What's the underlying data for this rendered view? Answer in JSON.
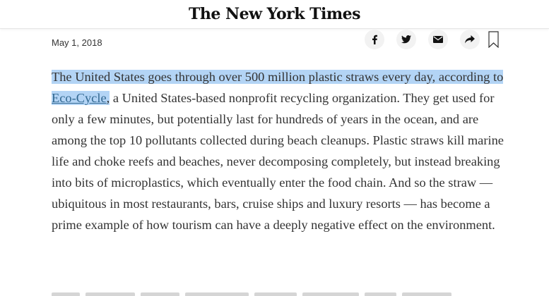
{
  "masthead": {
    "logo_text": "The New York Times"
  },
  "article": {
    "date": "May 1, 2018",
    "paragraph": {
      "highlighted_part1": "The United States goes through over 500 million plastic straws every day, according to ",
      "link_text": "Eco-Cycle",
      "highlighted_comma": ",",
      "rest": " a United States-based nonprofit recycling organization. They get used for only a few minutes, but potentially last for hundreds of years in the ocean, and are among the top 10 pollutants collected during beach cleanups. Plastic straws kill marine life and choke reefs and beaches, never decomposing completely, but instead breaking into bits of microplastics, which eventually enter the food chain. And so the straw — ubiquitous in most restaurants, bars, cruise ships and luxury resorts — has become a prime example of how tourism can have a deeply negative effect on the environment."
    }
  },
  "share_tools": [
    {
      "icon": "facebook-icon"
    },
    {
      "icon": "twitter-icon"
    },
    {
      "icon": "email-icon"
    },
    {
      "icon": "share-icon"
    },
    {
      "icon": "bookmark-icon"
    }
  ],
  "colors": {
    "highlight": "#b3d4f5",
    "link": "#326891",
    "text": "#333333"
  }
}
